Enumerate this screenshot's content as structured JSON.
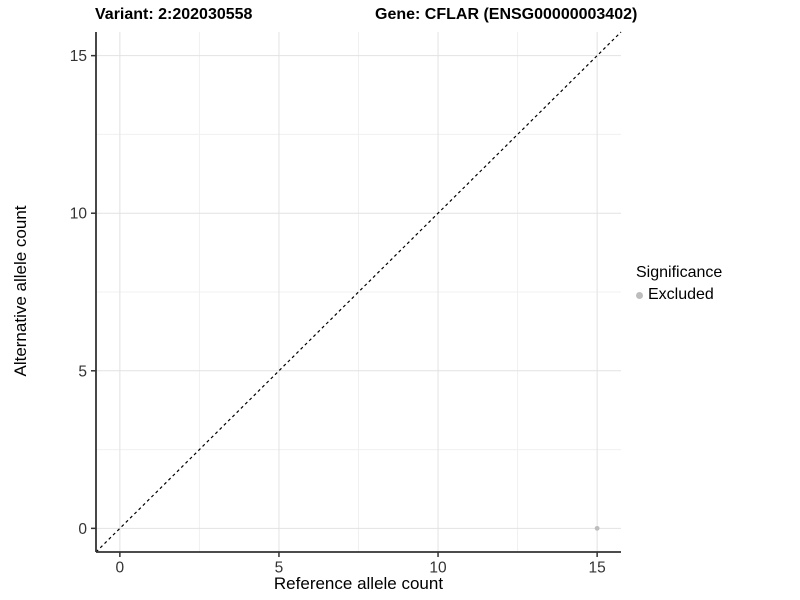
{
  "header": {
    "variant_title": "Variant: 2:202030558",
    "gene_title": "Gene: CFLAR (ENSG00000003402)"
  },
  "chart_data": {
    "type": "scatter",
    "xlabel": "Reference allele count",
    "ylabel": "Alternative allele count",
    "xlim": [
      -0.75,
      15.75
    ],
    "ylim": [
      -0.75,
      15.75
    ],
    "xticks": [
      0,
      5,
      10,
      15
    ],
    "yticks": [
      0,
      5,
      10,
      15
    ],
    "x_minor_breaks": [
      2.5,
      7.5,
      12.5
    ],
    "y_minor_breaks": [
      2.5,
      7.5,
      12.5
    ],
    "grid": "major-and-minor",
    "series": [
      {
        "name": "Excluded",
        "color": "#bdbdbd",
        "marker": "circle",
        "points": [
          {
            "x": 15,
            "y": 0
          }
        ]
      }
    ],
    "reference_line": {
      "style": "dashed",
      "from": [
        -0.75,
        -0.75
      ],
      "to": [
        15.75,
        15.75
      ]
    },
    "legend": {
      "title": "Significance",
      "position": "right",
      "entries": [
        {
          "label": "Excluded",
          "marker": "circle",
          "color": "#bdbdbd"
        }
      ]
    }
  },
  "colors": {
    "background": "#ffffff",
    "grid_major": "#e2e2e2",
    "grid_minor": "#f0f0f0",
    "axis_line": "#333333",
    "tick_text": "#333333",
    "reference_line": "#000000",
    "point": "#bdbdbd"
  }
}
